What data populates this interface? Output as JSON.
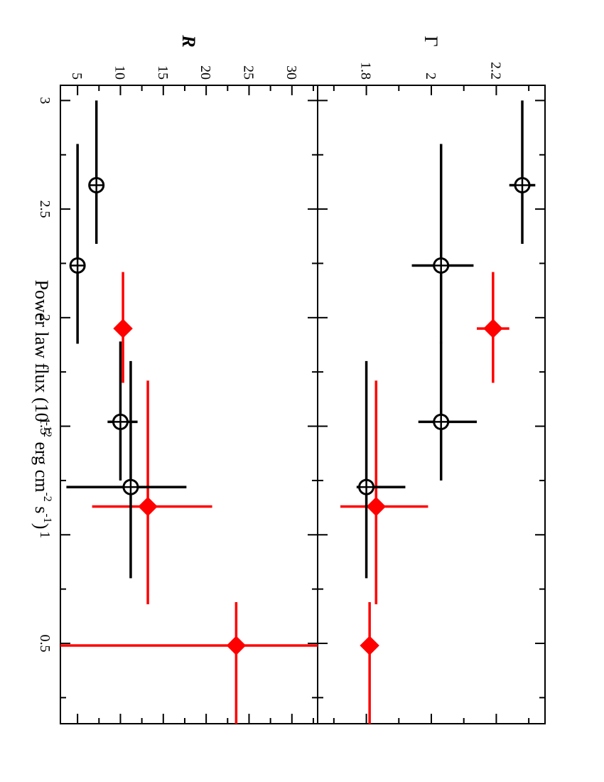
{
  "figure": {
    "xlabel_main": "Power law flux (10",
    "xlabel_exp1": "-12",
    "xlabel_mid": " erg cm",
    "xlabel_exp2": "-2",
    "xlabel_mid2": " s",
    "xlabel_exp3": "-1",
    "xlabel_end": ")"
  },
  "chart_data": [
    {
      "type": "scatter",
      "panel": "top",
      "ylabel": "Γ",
      "xlim": [
        0.13,
        3.07
      ],
      "ylim": [
        1.65,
        2.35
      ],
      "x_ticks": [
        0.5,
        1,
        1.5,
        2,
        2.5,
        3
      ],
      "x_tick_labels": [
        "0.5",
        "1",
        "1.5",
        "2",
        "2.5",
        "3"
      ],
      "y_ticks": [
        1.8,
        2.0,
        2.2
      ],
      "y_tick_labels": [
        "1.8",
        "2",
        "2.2"
      ],
      "series": [
        {
          "color": "#ff0000",
          "marker": "diamond-filled",
          "points": [
            {
              "x": 0.49,
              "y": 1.81,
              "xerr": [
                0.36,
                0.2
              ],
              "yerr": [
                0,
                0
              ]
            },
            {
              "x": 1.13,
              "y": 1.83,
              "xerr": [
                0.45,
                0.58
              ],
              "yerr": [
                0.11,
                0.16
              ]
            },
            {
              "x": 1.95,
              "y": 2.19,
              "xerr": [
                0.25,
                0.26
              ],
              "yerr": [
                0.05,
                0.05
              ]
            }
          ]
        },
        {
          "color": "#000000",
          "marker": "circle-cross-open",
          "points": [
            {
              "x": 1.22,
              "y": 1.8,
              "xerr": [
                0.42,
                0.58
              ],
              "yerr": [
                0.03,
                0.12
              ]
            },
            {
              "x": 1.52,
              "y": 2.03,
              "xerr": [
                0.27,
                0.37
              ],
              "yerr": [
                0.07,
                0.11
              ]
            },
            {
              "x": 2.24,
              "y": 2.03,
              "xerr": [
                0.36,
                0.56
              ],
              "yerr": [
                0.09,
                0.1
              ]
            },
            {
              "x": 2.61,
              "y": 2.28,
              "xerr": [
                0.27,
                0.39
              ],
              "yerr": [
                0.04,
                0.04
              ]
            }
          ]
        }
      ]
    },
    {
      "type": "scatter",
      "panel": "bottom",
      "ylabel": "R",
      "xlim": [
        0.13,
        3.07
      ],
      "ylim": [
        3,
        33
      ],
      "x_ticks": [
        0.5,
        1,
        1.5,
        2,
        2.5,
        3
      ],
      "x_tick_labels": [
        "0.5",
        "1",
        "1.5",
        "2",
        "2.5",
        "3"
      ],
      "y_ticks": [
        5,
        10,
        15,
        20,
        25,
        30
      ],
      "y_tick_labels": [
        "5",
        "10",
        "15",
        "20",
        "25",
        "30"
      ],
      "series": [
        {
          "color": "#ff0000",
          "marker": "diamond-filled",
          "points": [
            {
              "x": 0.49,
              "y": 23.5,
              "xerr": [
                0.36,
                0.2
              ],
              "yerr": [
                30,
                17
              ]
            },
            {
              "x": 1.13,
              "y": 13.2,
              "xerr": [
                0.45,
                0.58
              ],
              "yerr": [
                6.5,
                7.5
              ]
            },
            {
              "x": 1.95,
              "y": 10.3,
              "xerr": [
                0.25,
                0.26
              ],
              "yerr": [
                0,
                0
              ]
            }
          ]
        },
        {
          "color": "#000000",
          "marker": "circle-cross-open",
          "points": [
            {
              "x": 1.22,
              "y": 11.2,
              "xerr": [
                0.42,
                0.58
              ],
              "yerr": [
                7.5,
                6.5
              ]
            },
            {
              "x": 1.52,
              "y": 10.0,
              "xerr": [
                0.27,
                0.37
              ],
              "yerr": [
                1.5,
                2
              ]
            },
            {
              "x": 2.24,
              "y": 5.0,
              "xerr": [
                0.36,
                0.56
              ],
              "yerr": [
                0,
                0
              ]
            },
            {
              "x": 2.61,
              "y": 7.2,
              "xerr": [
                0.27,
                0.39
              ],
              "yerr": [
                0,
                0
              ]
            }
          ]
        }
      ]
    }
  ]
}
